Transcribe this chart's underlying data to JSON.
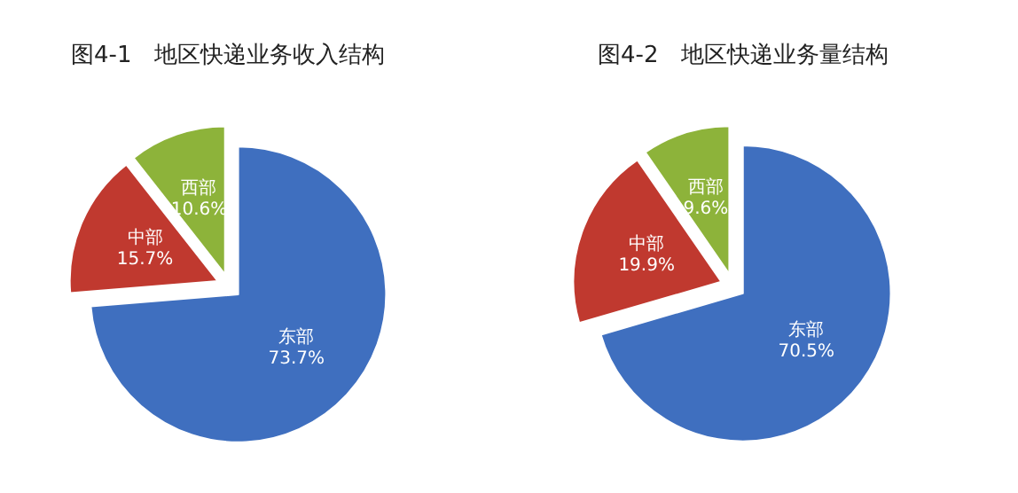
{
  "chart_data": [
    {
      "type": "pie",
      "title": "图4-1　地区快递业务收入结构",
      "categories": [
        "东部",
        "中部",
        "西部"
      ],
      "values": [
        73.7,
        15.7,
        10.6
      ],
      "colors": [
        "#3f6fbf",
        "#c0392f",
        "#8db33a"
      ],
      "value_labels": [
        "73.7%",
        "15.7%",
        "10.6%"
      ]
    },
    {
      "type": "pie",
      "title": "图4-2　地区快递业务量结构",
      "categories": [
        "东部",
        "中部",
        "西部"
      ],
      "values": [
        70.5,
        19.9,
        9.6
      ],
      "colors": [
        "#3f6fbf",
        "#c0392f",
        "#8db33a"
      ],
      "value_labels": [
        "70.5%",
        "19.9%",
        "9.6%"
      ]
    }
  ]
}
